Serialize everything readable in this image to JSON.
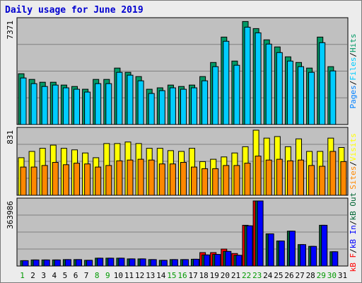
{
  "title": "Daily usage for June 2019",
  "colors": {
    "hits": "#009966",
    "files": "#00ccff",
    "pages": "#0080ff",
    "visits": "#ffff00",
    "sites": "#ff8800",
    "kbin": "#006633",
    "kbout": "#0000ff",
    "kbf": "#ff0000",
    "weekend_label": "#009900",
    "weekday_label": "#000000"
  },
  "chart_data": [
    {
      "type": "bar",
      "panel": "hits-files-pages",
      "ymax_label": "7371",
      "ymax": 7371,
      "legend": [
        "Pages",
        "/",
        "Files",
        "/",
        "Hits"
      ],
      "categories": [
        "1",
        "2",
        "3",
        "4",
        "5",
        "6",
        "7",
        "8",
        "9",
        "10",
        "11",
        "12",
        "13",
        "14",
        "15",
        "16",
        "17",
        "18",
        "19",
        "20",
        "21",
        "22",
        "23",
        "24",
        "25",
        "26",
        "27",
        "28",
        "29",
        "30",
        "31"
      ],
      "weekend_days": [
        1,
        8,
        9,
        15,
        16,
        22,
        23,
        29,
        30
      ],
      "series": [
        {
          "name": "Hits",
          "values": [
            3600,
            3200,
            3000,
            3000,
            2800,
            2700,
            2500,
            3200,
            3200,
            4000,
            3700,
            3400,
            2500,
            2600,
            2800,
            2700,
            2800,
            3400,
            4400,
            6200,
            4500,
            7300,
            6800,
            6000,
            5500,
            4800,
            4400,
            4000,
            6200,
            4100,
            0
          ]
        },
        {
          "name": "Files",
          "values": [
            3300,
            2900,
            2700,
            2800,
            2600,
            2500,
            2300,
            2900,
            2900,
            3700,
            3500,
            3100,
            2200,
            2400,
            2600,
            2500,
            2600,
            3100,
            4100,
            5900,
            4200,
            6900,
            6500,
            5700,
            5100,
            4500,
            4100,
            3700,
            5800,
            3800,
            0
          ]
        },
        {
          "name": "Pages",
          "values": [
            0,
            0,
            0,
            0,
            0,
            0,
            0,
            0,
            0,
            0,
            0,
            0,
            0,
            0,
            0,
            0,
            0,
            0,
            0,
            0,
            0,
            0,
            0,
            0,
            0,
            0,
            0,
            0,
            0,
            0,
            0
          ]
        }
      ]
    },
    {
      "type": "bar",
      "panel": "visits-sites",
      "ymax_label": "831",
      "ymax": 831,
      "legend": [
        "Sites",
        "/",
        "Visits"
      ],
      "series": [
        {
          "name": "Visits",
          "values": [
            480,
            560,
            600,
            640,
            600,
            580,
            540,
            480,
            660,
            660,
            680,
            660,
            600,
            600,
            570,
            560,
            600,
            430,
            460,
            490,
            540,
            620,
            831,
            730,
            750,
            620,
            720,
            560,
            560,
            730,
            610
          ]
        },
        {
          "name": "Sites",
          "values": [
            360,
            360,
            380,
            420,
            390,
            410,
            400,
            360,
            380,
            440,
            450,
            460,
            450,
            400,
            400,
            420,
            360,
            340,
            340,
            380,
            380,
            410,
            500,
            450,
            460,
            440,
            450,
            380,
            370,
            560,
            430
          ]
        }
      ]
    },
    {
      "type": "bar",
      "panel": "kbytes",
      "ymax_label": "363986",
      "ymax": 363986,
      "legend": [
        "kB F",
        "/",
        "kB In",
        "/",
        "kB Out"
      ],
      "series": [
        {
          "name": "kB F",
          "values": [
            0,
            0,
            0,
            0,
            0,
            0,
            0,
            0,
            0,
            0,
            0,
            0,
            0,
            0,
            0,
            0,
            0,
            75000,
            75000,
            95000,
            70000,
            228000,
            363986,
            0,
            0,
            0,
            0,
            0,
            0,
            0,
            0
          ]
        },
        {
          "name": "kB In",
          "values": [
            30000,
            34000,
            34000,
            34000,
            36000,
            36000,
            32000,
            44000,
            44000,
            44000,
            40000,
            40000,
            36000,
            32000,
            36000,
            36000,
            38000,
            62000,
            65000,
            82000,
            60000,
            225000,
            363986,
            180000,
            140000,
            195000,
            120000,
            110000,
            228000,
            80000,
            0
          ]
        },
        {
          "name": "kB Out",
          "values": [
            30000,
            34000,
            34000,
            34000,
            36000,
            36000,
            32000,
            44000,
            44000,
            44000,
            40000,
            40000,
            36000,
            32000,
            36000,
            36000,
            38000,
            62000,
            65000,
            82000,
            60000,
            225000,
            363986,
            180000,
            140000,
            195000,
            120000,
            110000,
            228000,
            80000,
            0
          ]
        }
      ]
    }
  ]
}
